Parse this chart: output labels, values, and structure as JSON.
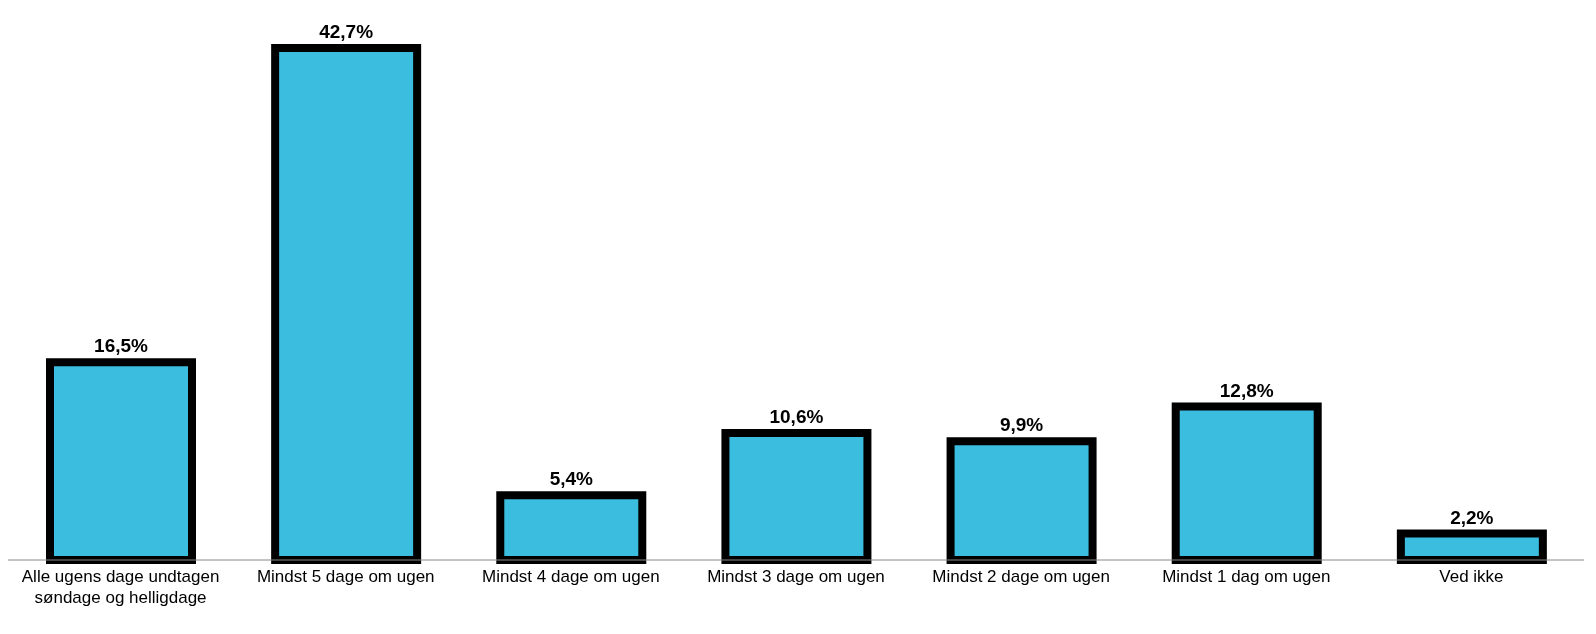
{
  "chart_data": {
    "type": "bar",
    "categories": [
      "Alle ugens dage undtagen søndage og helligdage",
      "Mindst 5 dage om ugen",
      "Mindst 4 dage om ugen",
      "Mindst 3 dage om ugen",
      "Mindst 2 dage om ugen",
      "Mindst 1 dag om ugen",
      "Ved ikke"
    ],
    "values": [
      16.5,
      42.7,
      5.4,
      10.6,
      9.9,
      12.8,
      2.2
    ],
    "value_labels": [
      "16,5%",
      "42,7%",
      "5,4%",
      "10,6%",
      "9,9%",
      "12,8%",
      "2,2%"
    ],
    "color": "#3bbde0",
    "grid": false,
    "legend": false
  }
}
